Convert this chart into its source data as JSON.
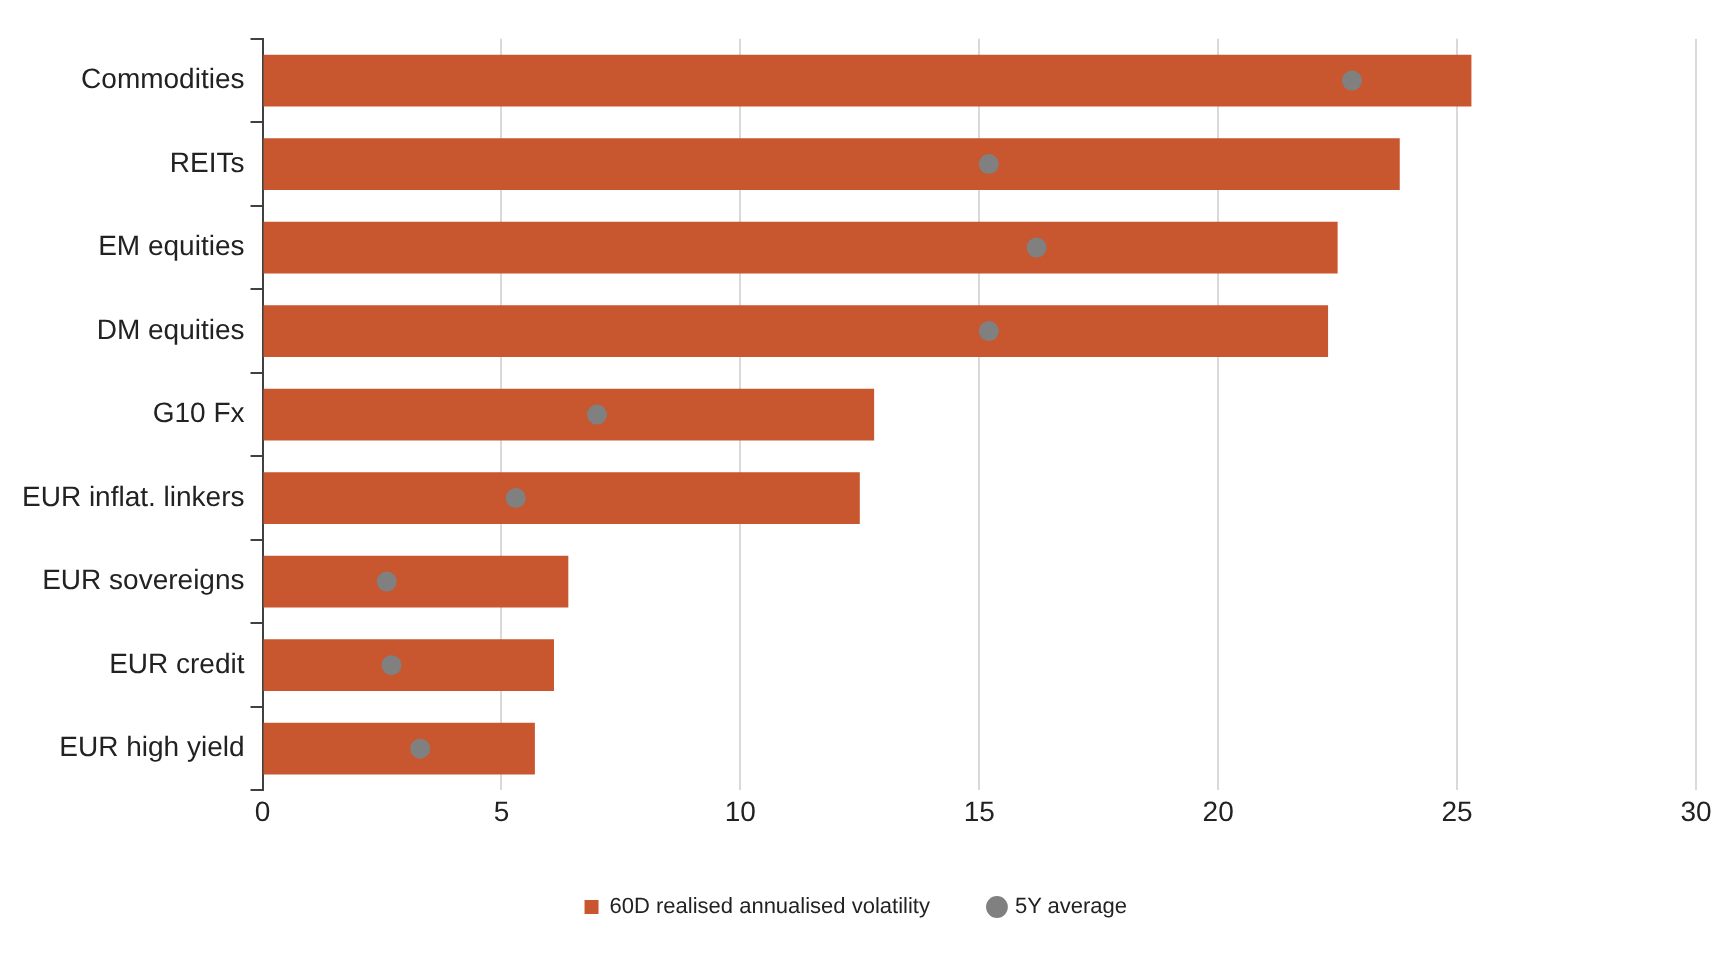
{
  "chart_data": {
    "type": "bar",
    "orientation": "horizontal",
    "categories": [
      "Commodities",
      "REITs",
      "EM equities",
      "DM equities",
      "G10 Fx",
      "EUR inflat. linkers",
      "EUR sovereigns",
      "EUR credit",
      "EUR high yield"
    ],
    "series": [
      {
        "name": "60D realised annualised volatility",
        "color": "#c8562e",
        "values": [
          25.3,
          23.8,
          22.5,
          22.3,
          12.8,
          12.5,
          6.4,
          6.1,
          5.7
        ]
      },
      {
        "name": "5Y average",
        "type": "scatter",
        "color": "#808080",
        "marker": "circle",
        "values": [
          22.8,
          15.2,
          16.2,
          15.2,
          7.0,
          5.3,
          2.6,
          2.7,
          3.3
        ]
      }
    ],
    "xlim": [
      0,
      30
    ],
    "xticks": [
      0,
      5,
      10,
      15,
      20,
      25,
      30
    ],
    "grid": "x",
    "legend": "bottom"
  }
}
